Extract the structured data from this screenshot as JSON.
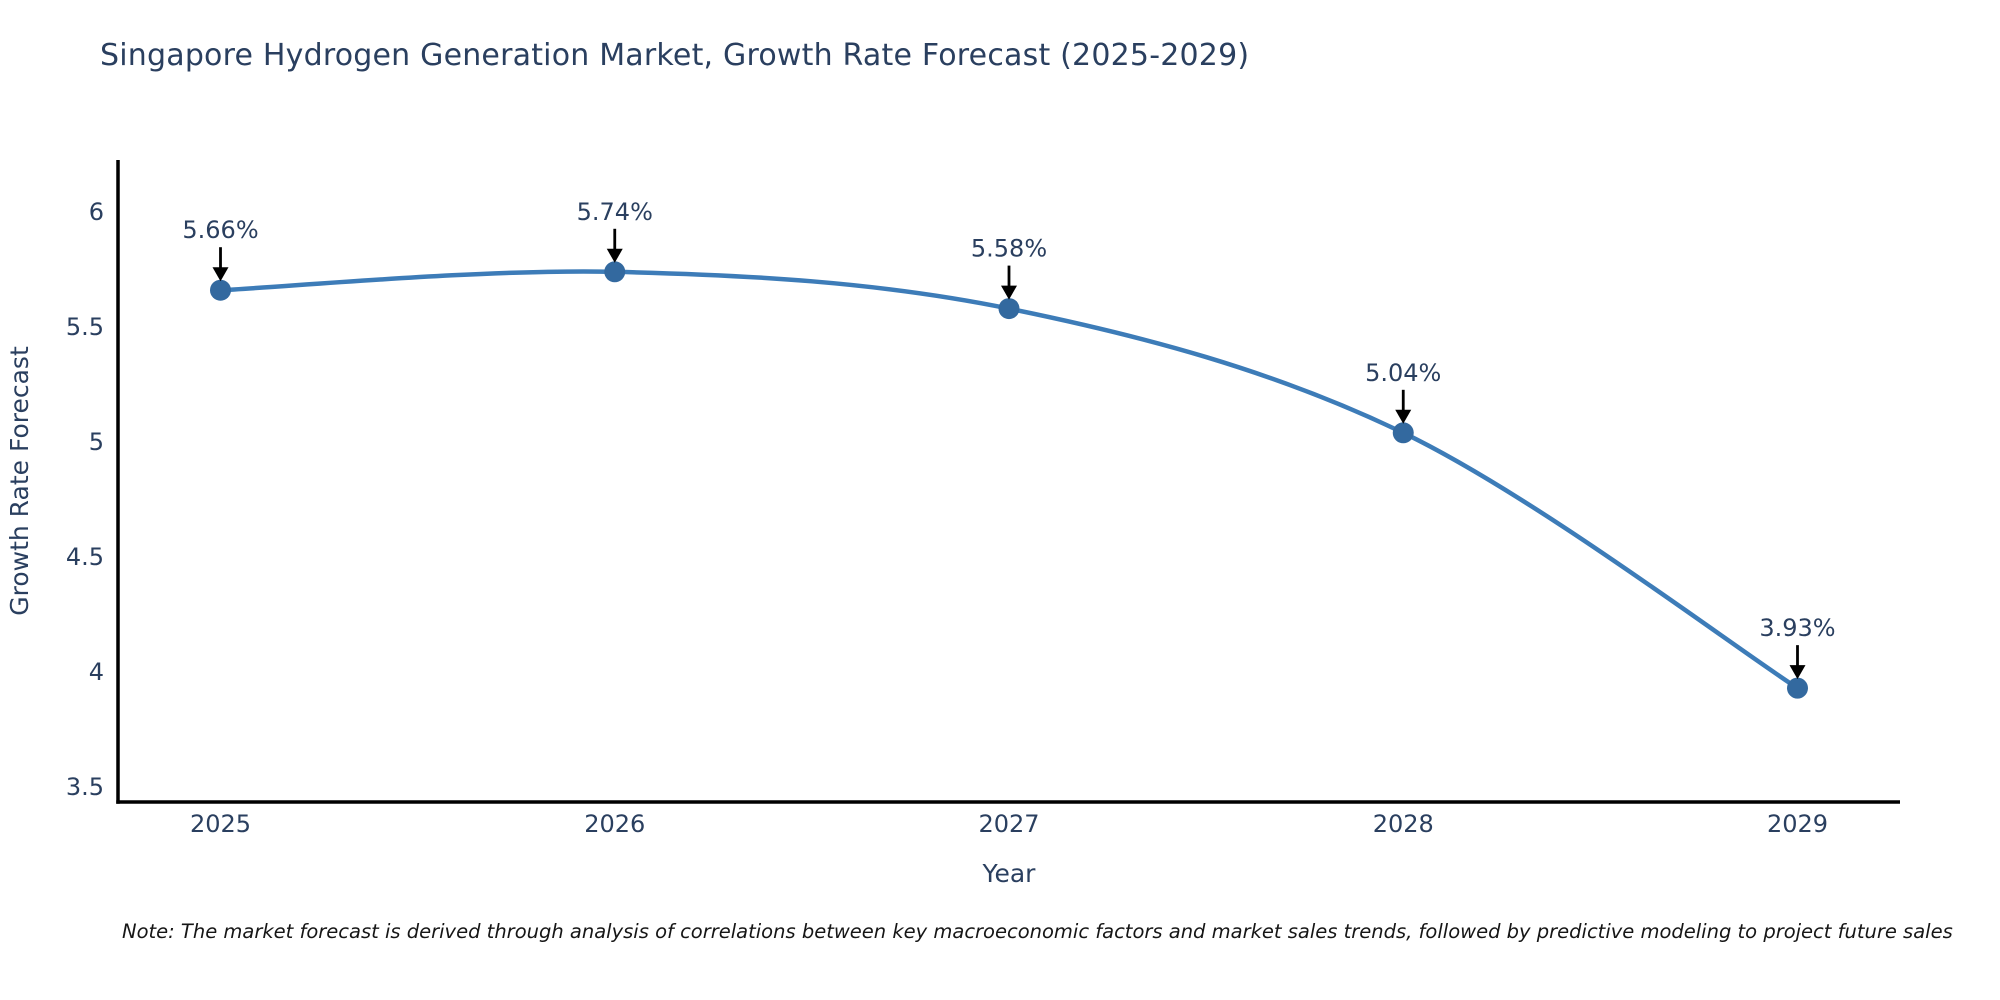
{
  "title": "Singapore Hydrogen Generation Market, Growth Rate Forecast (2025-2029)",
  "note": "Note: The market forecast is derived through analysis of correlations between key macroeconomic factors and market sales trends, followed by predictive modeling to project future sales",
  "chart_data": {
    "type": "line",
    "title": "Singapore Hydrogen Generation Market, Growth Rate Forecast (2025-2029)",
    "xlabel": "Year",
    "ylabel": "Growth Rate Forecast",
    "x": [
      2025,
      2026,
      2027,
      2028,
      2029
    ],
    "series": [
      {
        "name": "Growth Rate Forecast",
        "values": [
          5.66,
          5.74,
          5.58,
          5.04,
          3.93
        ]
      }
    ],
    "point_labels": [
      "5.66%",
      "5.74%",
      "5.58%",
      "5.04%",
      "3.93%"
    ],
    "yticks": [
      3.5,
      4,
      4.5,
      5,
      5.5,
      6
    ],
    "xticks": [
      2025,
      2026,
      2027,
      2028,
      2029
    ],
    "xlim": [
      2024.74,
      2029.26
    ],
    "ylim": [
      3.435,
      6.226
    ],
    "grid": false,
    "legend": false,
    "line_shape": "spline",
    "colors": {
      "line": "#3d7cb8",
      "marker": "#33699f",
      "text": "#2a3f5f",
      "axis": "#000000",
      "annotation_arrow": "#000000",
      "note_text": "#161616",
      "background": "#ffffff"
    }
  }
}
